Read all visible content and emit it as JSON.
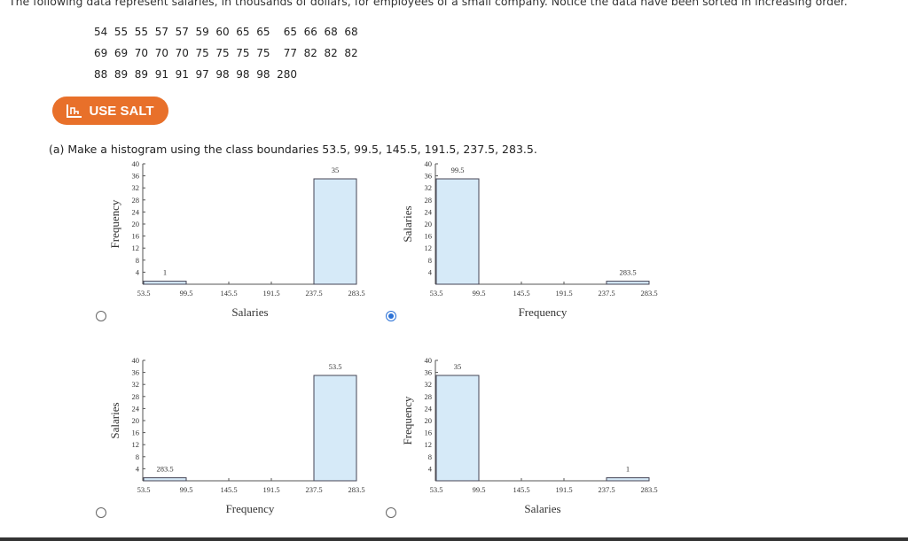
{
  "intro_text": "The following data represent salaries, in thousands of dollars, for employees of a small company. Notice the data have been sorted in increasing order.",
  "data_rows": [
    "54  55  55  57  57  59  60  65  65    65  66  68  68",
    "69  69  70  70  70  75  75  75  75    77  82  82  82",
    "88  89  89  91  91  97  98  98  98  280"
  ],
  "salt_button": {
    "label": "USE SALT",
    "icon": "salt-chart-icon",
    "color": "#e8702a"
  },
  "question_text": "(a) Make a histogram using the class boundaries 53.5, 99.5, 145.5, 191.5, 237.5, 283.5.",
  "accent_color": "#2c72d6",
  "bar_fill": "#d6eaf8",
  "chart_data": [
    {
      "type": "bar",
      "option": "top-left",
      "selected": false,
      "xlabel": "Salaries",
      "ylabel": "Frequency",
      "x_ticks": [
        "53.5",
        "99.5",
        "145.5",
        "191.5",
        "237.5",
        "283.5"
      ],
      "y_ticks": [
        4,
        8,
        12,
        16,
        20,
        24,
        28,
        32,
        36,
        40
      ],
      "ylim": [
        0,
        40
      ],
      "bins": [
        [
          53.5,
          99.5
        ],
        [
          99.5,
          145.5
        ],
        [
          145.5,
          191.5
        ],
        [
          191.5,
          237.5
        ],
        [
          237.5,
          283.5
        ]
      ],
      "values": [
        1,
        0,
        0,
        0,
        35
      ],
      "bar_labels": [
        "1",
        "",
        "",
        "",
        "35"
      ]
    },
    {
      "type": "bar",
      "option": "top-right",
      "selected": true,
      "xlabel": "Frequency",
      "ylabel": "Salaries",
      "x_ticks": [
        "53.5",
        "99.5",
        "145.5",
        "191.5",
        "237.5",
        "283.5"
      ],
      "y_ticks": [
        4,
        8,
        12,
        16,
        20,
        24,
        28,
        32,
        36,
        40
      ],
      "ylim": [
        0,
        40
      ],
      "bins": [
        [
          53.5,
          99.5
        ],
        [
          99.5,
          145.5
        ],
        [
          145.5,
          191.5
        ],
        [
          191.5,
          237.5
        ],
        [
          237.5,
          283.5
        ]
      ],
      "values": [
        35,
        0,
        0,
        0,
        1
      ],
      "bar_labels": [
        "99.5",
        "",
        "",
        "",
        "283.5"
      ]
    },
    {
      "type": "bar",
      "option": "bottom-left",
      "selected": false,
      "xlabel": "Frequency",
      "ylabel": "Salaries",
      "x_ticks": [
        "53.5",
        "99.5",
        "145.5",
        "191.5",
        "237.5",
        "283.5"
      ],
      "y_ticks": [
        4,
        8,
        12,
        16,
        20,
        24,
        28,
        32,
        36,
        40
      ],
      "ylim": [
        0,
        40
      ],
      "bins": [
        [
          53.5,
          99.5
        ],
        [
          99.5,
          145.5
        ],
        [
          145.5,
          191.5
        ],
        [
          191.5,
          237.5
        ],
        [
          237.5,
          283.5
        ]
      ],
      "values": [
        1,
        0,
        0,
        0,
        35
      ],
      "bar_labels": [
        "283.5",
        "",
        "",
        "",
        "53.5"
      ]
    },
    {
      "type": "bar",
      "option": "bottom-right",
      "selected": false,
      "xlabel": "Salaries",
      "ylabel": "Frequency",
      "x_ticks": [
        "53.5",
        "99.5",
        "145.5",
        "191.5",
        "237.5",
        "283.5"
      ],
      "y_ticks": [
        4,
        8,
        12,
        16,
        20,
        24,
        28,
        32,
        36,
        40
      ],
      "ylim": [
        0,
        40
      ],
      "bins": [
        [
          53.5,
          99.5
        ],
        [
          99.5,
          145.5
        ],
        [
          145.5,
          191.5
        ],
        [
          191.5,
          237.5
        ],
        [
          237.5,
          283.5
        ]
      ],
      "values": [
        35,
        0,
        0,
        0,
        1
      ],
      "bar_labels": [
        "35",
        "",
        "",
        "",
        "1"
      ]
    }
  ]
}
